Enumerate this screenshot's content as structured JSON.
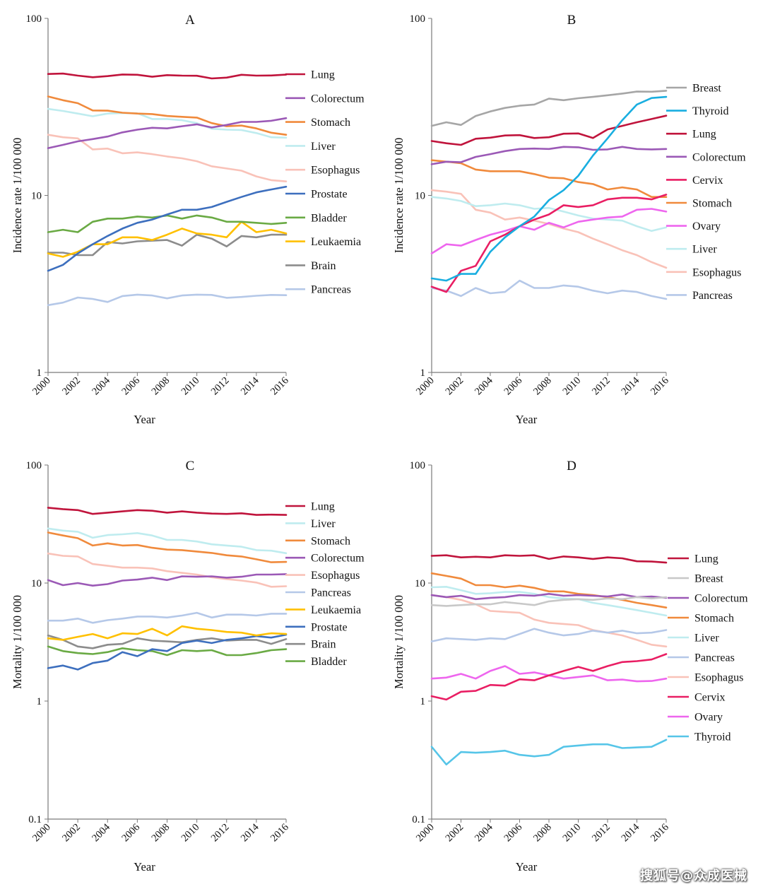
{
  "watermark": "搜狐号@众成医械",
  "chart_data": [
    {
      "type": "line",
      "title": "A",
      "xlabel": "Year",
      "ylabel": "Incidence rate 1/100 000",
      "yscale": "log",
      "ylim": [
        1,
        100
      ],
      "yticks": [
        "1",
        "10",
        "100"
      ],
      "xticks": [
        "2000",
        "2002",
        "2004",
        "2006",
        "2008",
        "2010",
        "2012",
        "2014",
        "2016"
      ],
      "x": [
        2000,
        2001,
        2002,
        2003,
        2004,
        2005,
        2006,
        2007,
        2008,
        2009,
        2010,
        2011,
        2012,
        2013,
        2014,
        2015,
        2016
      ],
      "legend_position": "right",
      "series": [
        {
          "name": "Lung",
          "color": "#c0143c",
          "values": [
            48.5,
            48.8,
            47.5,
            46.5,
            47.2,
            48.2,
            48.0,
            46.8,
            47.8,
            47.5,
            47.4,
            45.8,
            46.3,
            48.0,
            47.5,
            47.6,
            48.1
          ]
        },
        {
          "name": "Colorectum",
          "color": "#9b59b6",
          "values": [
            18.5,
            19.3,
            20.2,
            20.8,
            21.5,
            22.7,
            23.5,
            24.1,
            23.9,
            24.6,
            25.2,
            24.2,
            25.0,
            26.0,
            26.0,
            26.4,
            27.3
          ]
        },
        {
          "name": "Stomach",
          "color": "#f08a3c",
          "values": [
            36.2,
            34.5,
            33.2,
            30.2,
            30.1,
            29.3,
            29.0,
            28.8,
            28.1,
            27.8,
            27.5,
            25.6,
            24.6,
            24.8,
            23.9,
            22.6,
            22.0
          ]
        },
        {
          "name": "Liver",
          "color": "#bfecef",
          "values": [
            30.8,
            30.0,
            29.0,
            28.0,
            29.0,
            29.2,
            29.1,
            27.0,
            27.0,
            26.6,
            25.6,
            23.8,
            23.5,
            23.4,
            22.5,
            21.3,
            21.2
          ]
        },
        {
          "name": "Esophagus",
          "color": "#f9c2b8",
          "values": [
            22.0,
            21.3,
            21.0,
            18.2,
            18.4,
            17.3,
            17.5,
            17.1,
            16.6,
            16.2,
            15.6,
            14.6,
            14.2,
            13.8,
            12.8,
            12.2,
            12.0
          ]
        },
        {
          "name": "Prostate",
          "color": "#3d6fbe",
          "values": [
            3.75,
            4.05,
            4.7,
            5.3,
            5.9,
            6.5,
            7.0,
            7.3,
            7.8,
            8.3,
            8.3,
            8.6,
            9.2,
            9.8,
            10.4,
            10.8,
            11.2
          ]
        },
        {
          "name": "Bladder",
          "color": "#6aaa44",
          "values": [
            6.2,
            6.4,
            6.2,
            7.1,
            7.4,
            7.4,
            7.6,
            7.5,
            7.7,
            7.4,
            7.7,
            7.5,
            7.1,
            7.1,
            7.0,
            6.9,
            7.0
          ]
        },
        {
          "name": "Leukaemia",
          "color": "#ffc000",
          "values": [
            4.7,
            4.5,
            4.8,
            5.3,
            5.3,
            5.8,
            5.8,
            5.6,
            6.0,
            6.5,
            6.1,
            6.0,
            5.8,
            7.1,
            6.2,
            6.4,
            6.1
          ]
        },
        {
          "name": "Brain",
          "color": "#8c8c8c",
          "values": [
            4.75,
            4.75,
            4.6,
            4.6,
            5.45,
            5.35,
            5.5,
            5.55,
            5.6,
            5.2,
            6.0,
            5.7,
            5.15,
            5.9,
            5.8,
            6.0,
            6.0
          ]
        },
        {
          "name": "Pancreas",
          "color": "#b5c8e8",
          "values": [
            2.4,
            2.48,
            2.65,
            2.6,
            2.5,
            2.7,
            2.75,
            2.72,
            2.62,
            2.72,
            2.75,
            2.74,
            2.64,
            2.67,
            2.71,
            2.74,
            2.73
          ]
        }
      ]
    },
    {
      "type": "line",
      "title": "B",
      "xlabel": "Year",
      "ylabel": "Incidence rate 1/100 000",
      "yscale": "log",
      "ylim": [
        1,
        100
      ],
      "yticks": [
        "1",
        "10",
        "100"
      ],
      "xticks": [
        "2000",
        "2002",
        "2004",
        "2006",
        "2008",
        "2010",
        "2012",
        "2014",
        "2016"
      ],
      "x": [
        2000,
        2001,
        2002,
        2003,
        2004,
        2005,
        2006,
        2007,
        2008,
        2009,
        2010,
        2011,
        2012,
        2013,
        2014,
        2015,
        2016
      ],
      "legend_position": "right",
      "series": [
        {
          "name": "Breast",
          "color": "#a6a6a6",
          "values": [
            24.7,
            25.9,
            25.0,
            28.1,
            29.8,
            31.2,
            32.1,
            32.6,
            35.2,
            34.5,
            35.4,
            36.0,
            36.8,
            37.6,
            38.6,
            38.5,
            39.0
          ]
        },
        {
          "name": "Thyroid",
          "color": "#19aee0",
          "values": [
            3.4,
            3.3,
            3.6,
            3.6,
            4.8,
            5.8,
            6.7,
            7.6,
            9.4,
            10.7,
            12.9,
            16.8,
            21.0,
            26.6,
            32.6,
            35.5,
            36.0
          ]
        },
        {
          "name": "Lung",
          "color": "#c0143c",
          "values": [
            20.3,
            19.7,
            19.3,
            20.9,
            21.2,
            21.8,
            21.9,
            21.1,
            21.3,
            22.3,
            22.4,
            21.1,
            23.6,
            24.7,
            25.9,
            27.0,
            28.2
          ]
        },
        {
          "name": "Colorectum",
          "color": "#9b59b6",
          "values": [
            15.0,
            15.5,
            15.4,
            16.5,
            17.1,
            17.8,
            18.3,
            18.4,
            18.3,
            18.8,
            18.7,
            18.1,
            18.2,
            18.8,
            18.3,
            18.2,
            18.3
          ]
        },
        {
          "name": "Cervix",
          "color": "#e91e63",
          "values": [
            3.05,
            2.85,
            3.75,
            4.0,
            5.5,
            6.0,
            6.7,
            7.3,
            7.8,
            8.8,
            8.6,
            8.8,
            9.5,
            9.7,
            9.7,
            9.5,
            10.1
          ]
        },
        {
          "name": "Stomach",
          "color": "#f08a3c",
          "values": [
            15.8,
            15.5,
            15.2,
            14.0,
            13.7,
            13.7,
            13.7,
            13.2,
            12.6,
            12.5,
            11.9,
            11.6,
            10.8,
            11.1,
            10.8,
            9.8,
            9.8
          ]
        },
        {
          "name": "Ovary",
          "color": "#ee66ee",
          "values": [
            4.7,
            5.3,
            5.2,
            5.6,
            6.0,
            6.3,
            6.7,
            6.4,
            7.0,
            6.6,
            7.1,
            7.3,
            7.5,
            7.6,
            8.3,
            8.4,
            8.1
          ]
        },
        {
          "name": "Liver",
          "color": "#bfecef",
          "values": [
            9.8,
            9.6,
            9.3,
            8.7,
            8.8,
            9.0,
            8.8,
            8.4,
            8.5,
            8.1,
            7.7,
            7.4,
            7.3,
            7.2,
            6.7,
            6.3,
            6.6
          ]
        },
        {
          "name": "Esophagus",
          "color": "#f9c2b8",
          "values": [
            10.7,
            10.5,
            10.2,
            8.3,
            8.0,
            7.3,
            7.5,
            7.2,
            6.9,
            6.5,
            6.2,
            5.7,
            5.3,
            4.9,
            4.6,
            4.2,
            3.9
          ]
        },
        {
          "name": "Pancreas",
          "color": "#b5c8e8",
          "values": [
            3.0,
            2.9,
            2.7,
            3.0,
            2.8,
            2.85,
            3.3,
            3.0,
            3.0,
            3.1,
            3.05,
            2.9,
            2.8,
            2.9,
            2.85,
            2.7,
            2.6
          ]
        }
      ]
    },
    {
      "type": "line",
      "title": "C",
      "xlabel": "Year",
      "ylabel": "Mortality 1/100 000",
      "yscale": "log",
      "ylim": [
        0.1,
        100
      ],
      "yticks": [
        "0.1",
        "1",
        "10",
        "100"
      ],
      "xticks": [
        "2000",
        "2002",
        "2004",
        "2006",
        "2008",
        "2010",
        "2012",
        "2014",
        "2016"
      ],
      "x": [
        2000,
        2001,
        2002,
        2003,
        2004,
        2005,
        2006,
        2007,
        2008,
        2009,
        2010,
        2011,
        2012,
        2013,
        2014,
        2015,
        2016
      ],
      "legend_position": "right",
      "series": [
        {
          "name": "Lung",
          "color": "#c0143c",
          "values": [
            43.5,
            42.3,
            41.5,
            38.5,
            39.5,
            40.5,
            41.5,
            41.0,
            39.5,
            40.5,
            39.5,
            38.8,
            38.5,
            39.0,
            37.8,
            38.0,
            37.8
          ]
        },
        {
          "name": "Liver",
          "color": "#bfecef",
          "values": [
            29.0,
            27.8,
            27.2,
            24.2,
            25.5,
            25.9,
            26.5,
            25.3,
            23.2,
            23.2,
            22.5,
            21.3,
            20.8,
            20.3,
            19.0,
            18.8,
            17.9
          ]
        },
        {
          "name": "Stomach",
          "color": "#f08a3c",
          "values": [
            26.8,
            25.3,
            24.0,
            20.8,
            21.7,
            20.8,
            21.0,
            19.9,
            19.2,
            19.0,
            18.5,
            18.0,
            17.2,
            16.8,
            15.9,
            15.0,
            15.1
          ]
        },
        {
          "name": "Colorectum",
          "color": "#9b59b6",
          "values": [
            10.6,
            9.6,
            10.0,
            9.5,
            9.8,
            10.5,
            10.7,
            11.1,
            10.6,
            11.4,
            11.3,
            11.4,
            11.1,
            11.3,
            11.8,
            11.8,
            11.9
          ]
        },
        {
          "name": "Esophagus",
          "color": "#f9c2b8",
          "values": [
            17.8,
            17.0,
            16.8,
            14.5,
            14.0,
            13.5,
            13.5,
            13.3,
            12.6,
            12.2,
            11.8,
            11.2,
            10.8,
            10.5,
            10.1,
            9.3,
            9.4
          ]
        },
        {
          "name": "Pancreas",
          "color": "#b5c8e8",
          "values": [
            4.8,
            4.8,
            5.0,
            4.6,
            4.85,
            5.0,
            5.2,
            5.2,
            5.1,
            5.3,
            5.6,
            5.1,
            5.4,
            5.4,
            5.3,
            5.5,
            5.5
          ]
        },
        {
          "name": "Leukaemia",
          "color": "#ffc000",
          "values": [
            3.4,
            3.3,
            3.5,
            3.7,
            3.4,
            3.75,
            3.7,
            4.1,
            3.6,
            4.3,
            4.1,
            4.0,
            3.85,
            3.8,
            3.6,
            3.75,
            3.7
          ]
        },
        {
          "name": "Prostate",
          "color": "#3d6fbe",
          "values": [
            1.9,
            2.0,
            1.85,
            2.1,
            2.2,
            2.6,
            2.4,
            2.75,
            2.65,
            3.1,
            3.25,
            3.1,
            3.3,
            3.4,
            3.55,
            3.45,
            3.65
          ]
        },
        {
          "name": "Brain",
          "color": "#8c8c8c",
          "values": [
            3.6,
            3.3,
            2.9,
            2.8,
            3.0,
            3.05,
            3.4,
            3.25,
            3.2,
            3.15,
            3.3,
            3.4,
            3.25,
            3.3,
            3.3,
            3.05,
            3.35
          ]
        },
        {
          "name": "Bladder",
          "color": "#6aaa44",
          "values": [
            2.9,
            2.65,
            2.55,
            2.5,
            2.6,
            2.8,
            2.7,
            2.65,
            2.45,
            2.7,
            2.65,
            2.7,
            2.45,
            2.45,
            2.55,
            2.7,
            2.75
          ]
        }
      ]
    },
    {
      "type": "line",
      "title": "D",
      "xlabel": "Year",
      "ylabel": "Mortality 1/100 000",
      "yscale": "log",
      "ylim": [
        0.1,
        100
      ],
      "yticks": [
        "0.1",
        "1",
        "10",
        "100"
      ],
      "xticks": [
        "2000",
        "2002",
        "2004",
        "2006",
        "2008",
        "2010",
        "2012",
        "2014",
        "2016"
      ],
      "x": [
        2000,
        2001,
        2002,
        2003,
        2004,
        2005,
        2006,
        2007,
        2008,
        2009,
        2010,
        2011,
        2012,
        2013,
        2014,
        2015,
        2016
      ],
      "legend_position": "right",
      "series": [
        {
          "name": "Lung",
          "color": "#c0143c",
          "values": [
            17.0,
            17.2,
            16.5,
            16.7,
            16.5,
            17.2,
            17.0,
            17.2,
            16.0,
            16.8,
            16.5,
            16.0,
            16.5,
            16.2,
            15.3,
            15.2,
            14.9
          ]
        },
        {
          "name": "Breast",
          "color": "#c8c8c8",
          "values": [
            6.5,
            6.4,
            6.5,
            6.6,
            6.6,
            6.9,
            6.7,
            6.5,
            7.0,
            7.2,
            7.3,
            7.2,
            7.4,
            7.3,
            7.6,
            7.4,
            7.6
          ]
        },
        {
          "name": "Colorectum",
          "color": "#9b59b6",
          "values": [
            7.9,
            7.6,
            7.8,
            7.3,
            7.5,
            7.6,
            7.9,
            7.8,
            8.1,
            7.8,
            7.9,
            7.8,
            7.7,
            8.0,
            7.6,
            7.7,
            7.5
          ]
        },
        {
          "name": "Stomach",
          "color": "#f08a3c",
          "values": [
            12.1,
            11.5,
            10.9,
            9.6,
            9.6,
            9.2,
            9.5,
            9.1,
            8.5,
            8.5,
            8.1,
            7.9,
            7.6,
            7.2,
            6.8,
            6.5,
            6.2
          ]
        },
        {
          "name": "Liver",
          "color": "#bfecef",
          "values": [
            9.2,
            9.3,
            8.7,
            8.1,
            8.2,
            8.4,
            8.4,
            8.1,
            7.6,
            7.4,
            7.3,
            6.8,
            6.5,
            6.2,
            5.9,
            5.6,
            5.3
          ]
        },
        {
          "name": "Pancreas",
          "color": "#b5c8e8",
          "values": [
            3.2,
            3.4,
            3.35,
            3.3,
            3.4,
            3.35,
            3.7,
            4.1,
            3.8,
            3.6,
            3.7,
            3.95,
            3.8,
            3.95,
            3.75,
            3.8,
            4.0
          ]
        },
        {
          "name": "Esophagus",
          "color": "#f9c2b8",
          "values": [
            7.9,
            7.6,
            7.2,
            6.6,
            5.8,
            5.7,
            5.6,
            4.9,
            4.6,
            4.5,
            4.4,
            4.0,
            3.8,
            3.6,
            3.3,
            3.0,
            2.9
          ]
        },
        {
          "name": "Cervix",
          "color": "#e91e63",
          "values": [
            1.1,
            1.03,
            1.2,
            1.22,
            1.37,
            1.35,
            1.53,
            1.5,
            1.65,
            1.8,
            1.95,
            1.8,
            1.98,
            2.14,
            2.18,
            2.25,
            2.5
          ]
        },
        {
          "name": "Ovary",
          "color": "#ee66ee",
          "values": [
            1.55,
            1.58,
            1.7,
            1.55,
            1.8,
            1.98,
            1.7,
            1.75,
            1.65,
            1.55,
            1.6,
            1.65,
            1.5,
            1.52,
            1.47,
            1.48,
            1.55
          ]
        },
        {
          "name": "Thyroid",
          "color": "#56c5e8",
          "values": [
            0.41,
            0.29,
            0.37,
            0.365,
            0.37,
            0.38,
            0.35,
            0.34,
            0.35,
            0.41,
            0.42,
            0.43,
            0.43,
            0.4,
            0.405,
            0.41,
            0.47
          ]
        }
      ]
    }
  ]
}
